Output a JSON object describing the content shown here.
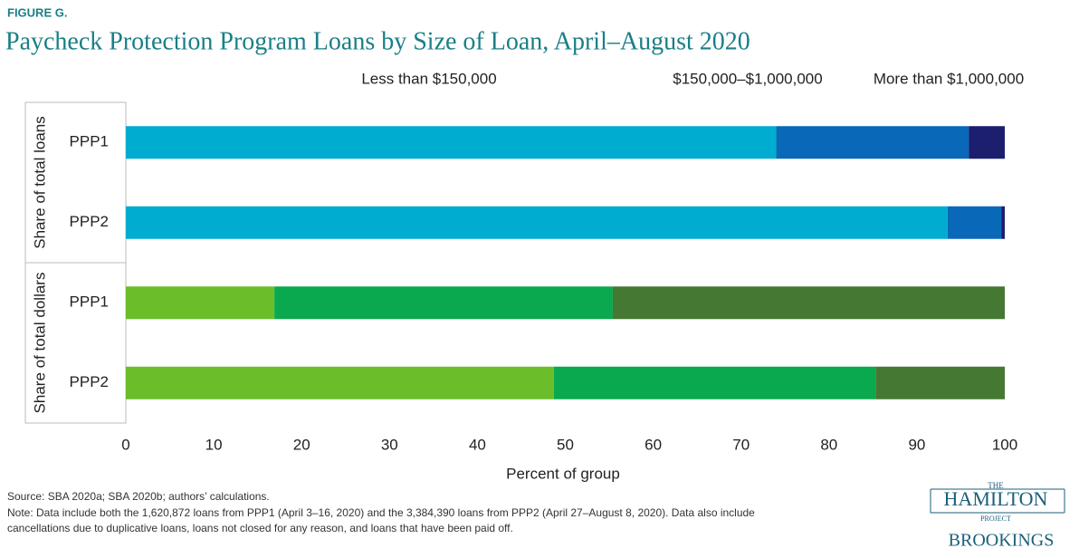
{
  "chart_data": {
    "type": "bar",
    "orientation": "horizontal",
    "stacked": true,
    "figure_label": "FIGURE G.",
    "title": "Paycheck Protection Program Loans by Size of Loan, April–August 2020",
    "legend": [
      "Less than $150,000",
      "$150,000–$1,000,000",
      "More than $1,000,000"
    ],
    "x_label": "Percent of group",
    "xlim": [
      0,
      100
    ],
    "xticks": [
      0,
      10,
      20,
      30,
      40,
      50,
      60,
      70,
      80,
      90,
      100
    ],
    "groups": [
      {
        "label": "Share of total loans",
        "categories": [
          "PPP1",
          "PPP2"
        ],
        "series": [
          {
            "color": "#00acd0",
            "values": [
              74.0,
              93.5
            ]
          },
          {
            "color": "#0a68b8",
            "values": [
              21.9,
              6.1
            ]
          },
          {
            "color": "#1b1f6e",
            "values": [
              4.1,
              0.4
            ]
          }
        ]
      },
      {
        "label": "Share of total dollars",
        "categories": [
          "PPP1",
          "PPP2"
        ],
        "series": [
          {
            "color": "#6bbd2a",
            "values": [
              16.9,
              48.7
            ]
          },
          {
            "color": "#0aa84f",
            "values": [
              38.5,
              36.6
            ]
          },
          {
            "color": "#457832",
            "values": [
              44.6,
              14.7
            ]
          }
        ]
      }
    ],
    "source": "Source: SBA 2020a; SBA 2020b; authors’ calculations.",
    "note": [
      "Note: Data include both the 1,620,872 loans from PPP1 (April 3–16, 2020) and the 3,384,390 loans from PPP2 (April 27–August 8, 2020). Data also include",
      "cancellations due to duplicative loans, loans not closed for any reason, and loans that have been paid off."
    ],
    "logo": {
      "the": "THE",
      "hamilton": "HAMILTON",
      "project": "PROJECT",
      "brookings": "BROOKINGS"
    }
  }
}
